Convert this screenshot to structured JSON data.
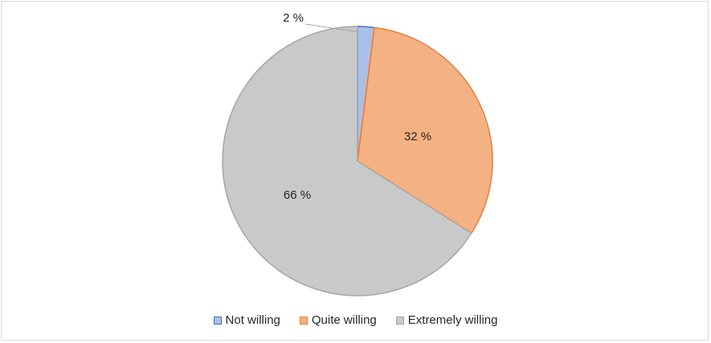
{
  "chart_data": {
    "type": "pie",
    "title": "",
    "series": [
      {
        "name": "Not willing",
        "value": 2,
        "label": "2 %",
        "fill": "#a9c0ea",
        "stroke": "#4472c4"
      },
      {
        "name": "Quite willing",
        "value": 32,
        "label": "32 %",
        "fill": "#f4b183",
        "stroke": "#ed7d31"
      },
      {
        "name": "Extremely willing",
        "value": 66,
        "label": "66 %",
        "fill": "#c9c9c9",
        "stroke": "#a5a5a5"
      }
    ],
    "legend_position": "bottom"
  }
}
